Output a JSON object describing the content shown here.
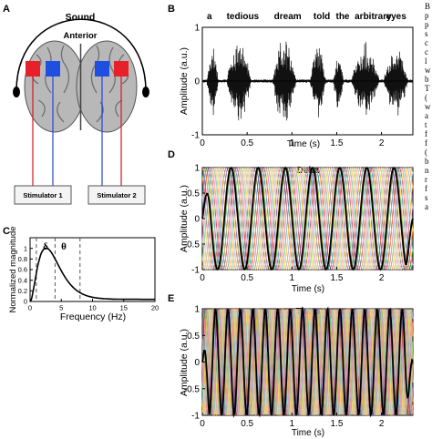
{
  "panels": {
    "A": {
      "letter": "A",
      "sound": "Sound",
      "anterior": "Anterior",
      "stim1": "Stimulator 1",
      "stim2": "Stimulator 2"
    },
    "B": {
      "letter": "B",
      "words": [
        "a",
        "tedious",
        "dream",
        "told",
        "the",
        "arbitrary",
        "eyes"
      ],
      "ylabel": "Amplitude (a.u.)",
      "xlabel": "Time (s)"
    },
    "C": {
      "letter": "C",
      "ylabel": "Normalized magnitude",
      "xlabel": "Frequency (Hz)",
      "delta": "δ",
      "theta": "θ"
    },
    "D": {
      "letter": "D",
      "title": "Delta",
      "ylabel": "Amplitude (a.u.)",
      "xlabel": "Time (s)"
    },
    "E": {
      "letter": "E",
      "title": "Theta",
      "ylabel": "Amplitude (a.u.)",
      "xlabel": "Time (s)"
    }
  },
  "side_text": [
    "B",
    "p",
    "p",
    "s",
    "c",
    "c",
    "l",
    "w",
    "b",
    "T",
    "(",
    "w",
    "a",
    "t",
    "f",
    "f",
    "(",
    "b",
    "n",
    "r",
    "f",
    "s",
    "a"
  ],
  "colors": {
    "stim_red": "#e8202a",
    "stim_blue": "#1f4fe0",
    "wire_red": "#d8151f",
    "wire_blue": "#2244dd"
  },
  "chart_data": [
    {
      "type": "line",
      "panel": "B",
      "title": "",
      "xlabel": "Time (s)",
      "ylabel": "Amplitude (a.u.)",
      "xlim": [
        0,
        2.35
      ],
      "ylim": [
        -1,
        1
      ],
      "xticks": [
        0,
        0.5,
        1,
        1.5,
        2
      ],
      "yticks": [
        -1,
        0,
        1
      ],
      "word_onsets": [
        0.03,
        0.25,
        0.78,
        1.22,
        1.47,
        1.68,
        2.03
      ],
      "bursts": [
        [
          0.05,
          0.18,
          0.7
        ],
        [
          0.27,
          0.55,
          0.85
        ],
        [
          0.78,
          1.05,
          0.9
        ],
        [
          1.2,
          1.38,
          0.75
        ],
        [
          1.46,
          1.58,
          0.55
        ],
        [
          1.66,
          1.98,
          0.75
        ],
        [
          2.02,
          2.3,
          0.7
        ]
      ]
    },
    {
      "type": "line",
      "panel": "C",
      "title": "",
      "xlabel": "Frequency (Hz)",
      "ylabel": "Normalized magnitude",
      "xlim": [
        0,
        20
      ],
      "ylim": [
        0,
        1.2
      ],
      "xticks": [
        0,
        5,
        10,
        15,
        20
      ],
      "yticks": [
        0,
        0.2,
        0.4,
        0.6,
        0.8,
        1
      ],
      "peak_hz": 2.5,
      "band_edges_hz": [
        1,
        4,
        8
      ]
    },
    {
      "type": "line",
      "panel": "D",
      "title": "Delta",
      "xlabel": "Time (s)",
      "ylabel": "Amplitude (a.u.)",
      "xlim": [
        0,
        2.35
      ],
      "ylim": [
        -1,
        1
      ],
      "xticks": [
        0,
        0.5,
        1,
        1.5,
        2
      ],
      "yticks": [
        -1,
        -0.5,
        0,
        0.5,
        1
      ],
      "freq_hz": 3.3,
      "n_phase_shifted": 14
    },
    {
      "type": "line",
      "panel": "E",
      "title": "Theta",
      "xlabel": "Time (s)",
      "ylabel": "Amplitude (a.u.)",
      "xlim": [
        0,
        2.35
      ],
      "ylim": [
        -1,
        1
      ],
      "xticks": [
        0,
        0.5,
        1,
        1.5,
        2
      ],
      "yticks": [
        -1,
        -0.5,
        0,
        0.5,
        1
      ],
      "freq_hz": 7.2,
      "n_phase_shifted": 14
    }
  ]
}
